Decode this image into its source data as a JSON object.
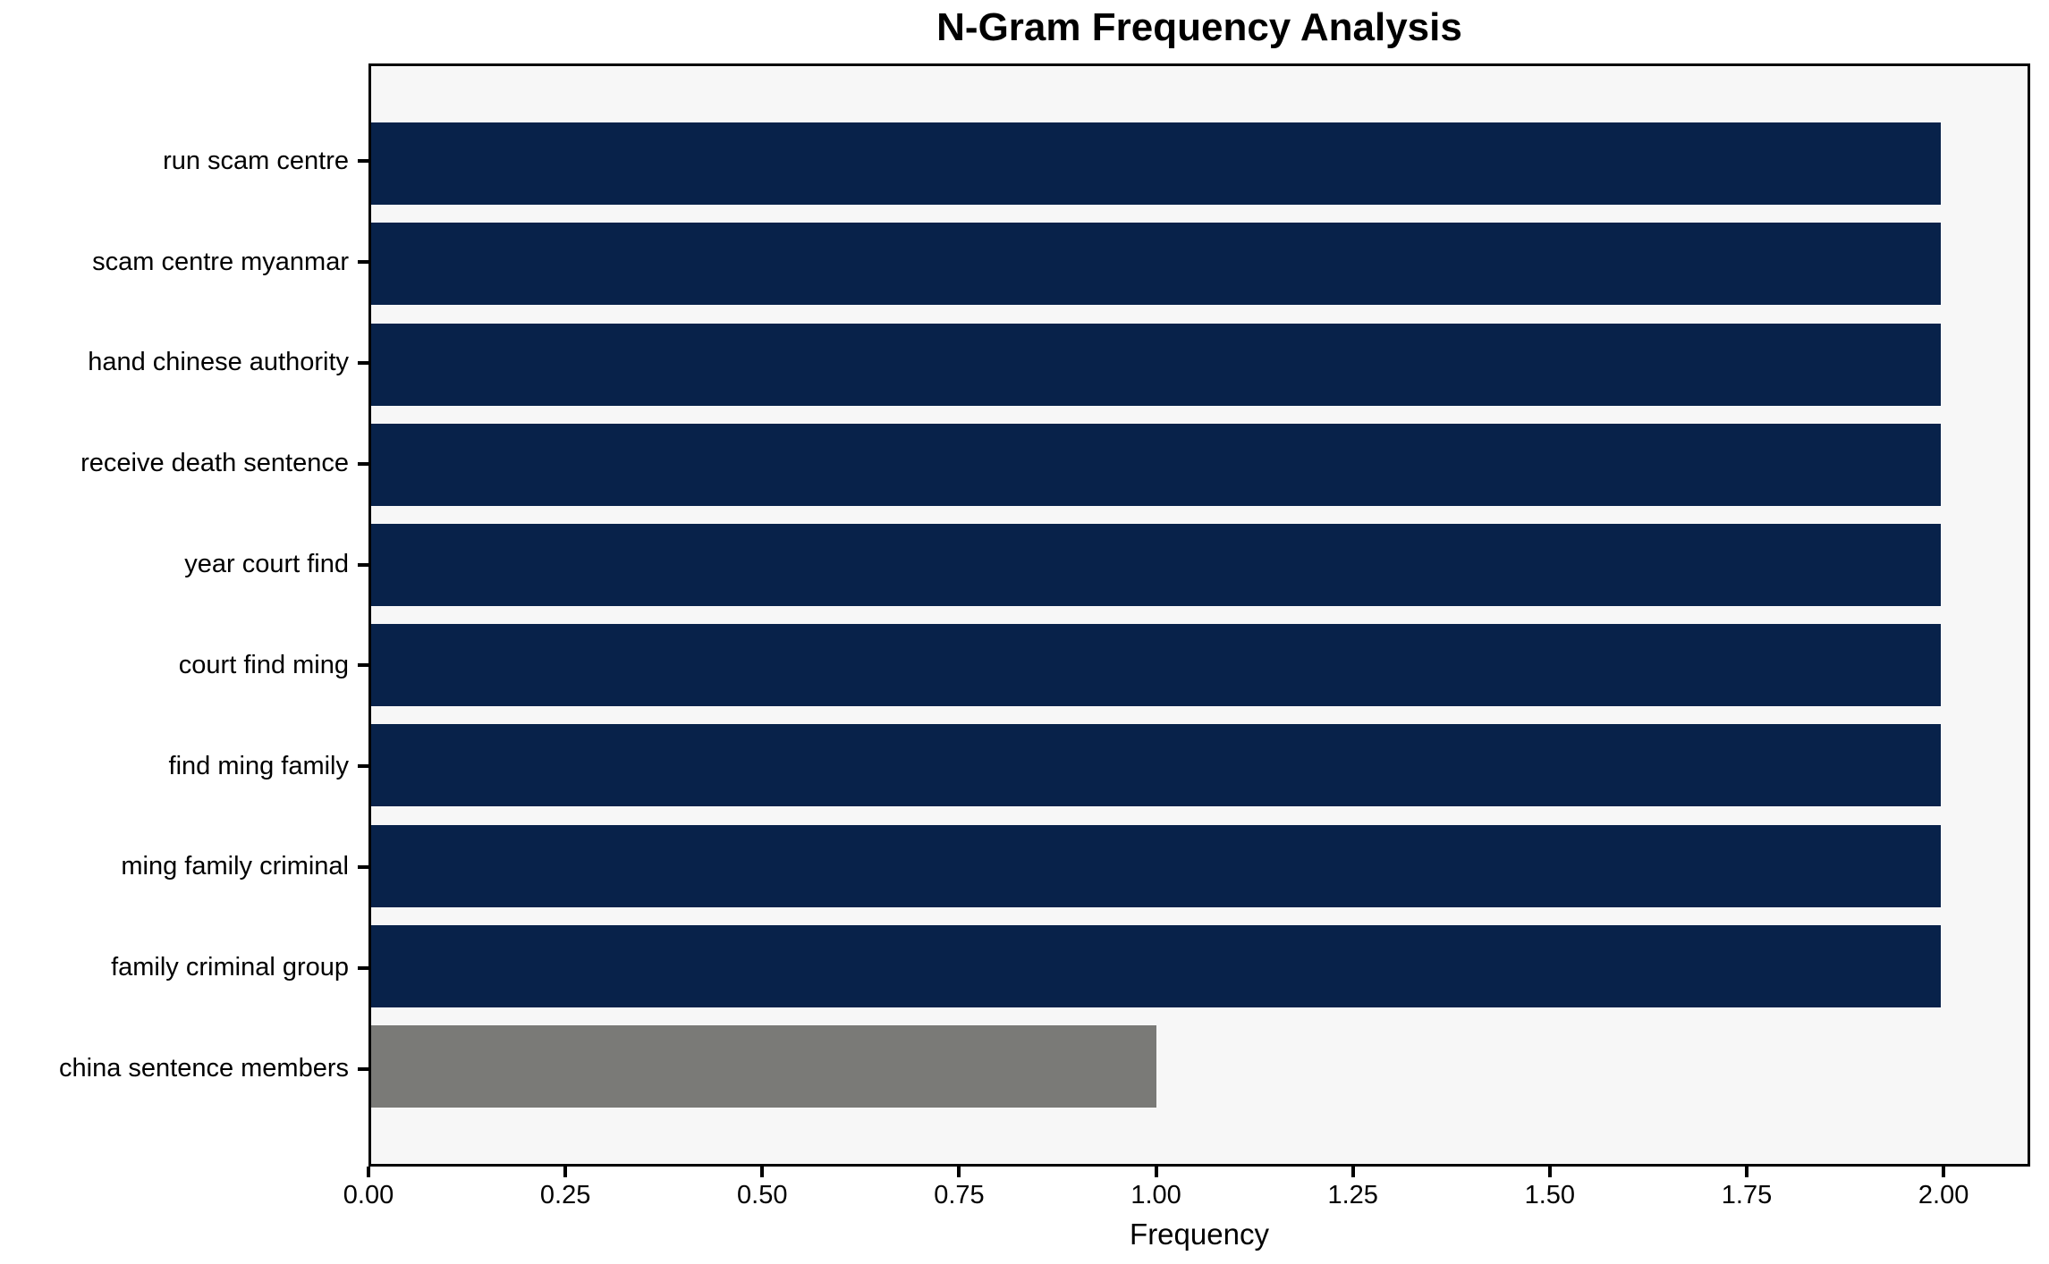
{
  "title": "N-Gram Frequency Analysis",
  "chart_data": {
    "type": "bar",
    "orientation": "horizontal",
    "title": "N-Gram Frequency Analysis",
    "xlabel": "Frequency",
    "ylabel": "",
    "categories": [
      "run scam centre",
      "scam centre myanmar",
      "hand chinese authority",
      "receive death sentence",
      "year court find",
      "court find ming",
      "find ming family",
      "ming family criminal",
      "family criminal group",
      "china sentence members"
    ],
    "values": [
      2,
      2,
      2,
      2,
      2,
      2,
      2,
      2,
      2,
      1
    ],
    "bar_colors": [
      "#08224a",
      "#08224a",
      "#08224a",
      "#08224a",
      "#08224a",
      "#08224a",
      "#08224a",
      "#08224a",
      "#08224a",
      "#7a7a77"
    ],
    "xlim": [
      0,
      2.11
    ],
    "x_ticks": [
      {
        "value": 0.0,
        "label": "0.00"
      },
      {
        "value": 0.25,
        "label": "0.25"
      },
      {
        "value": 0.5,
        "label": "0.50"
      },
      {
        "value": 0.75,
        "label": "0.75"
      },
      {
        "value": 1.0,
        "label": "1.00"
      },
      {
        "value": 1.25,
        "label": "1.25"
      },
      {
        "value": 1.5,
        "label": "1.50"
      },
      {
        "value": 1.75,
        "label": "1.75"
      },
      {
        "value": 2.0,
        "label": "2.00"
      }
    ],
    "grid": false,
    "legend": null,
    "colors": {
      "bar_primary": "#08224a",
      "bar_highlight": "#7a7a77",
      "plot_background": "#f7f7f7",
      "figure_background": "#ffffff",
      "spine": "#000000",
      "text": "#000000"
    }
  }
}
